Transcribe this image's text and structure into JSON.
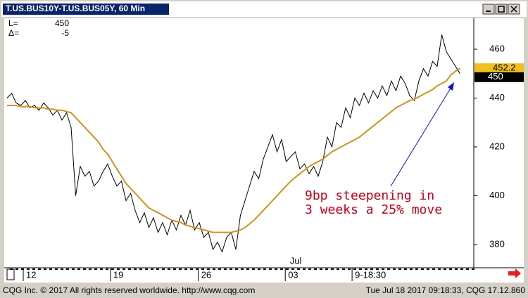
{
  "window_title": "T.US.BUS10Y-T.US.BUS05Y, 60 Min",
  "readout": {
    "last_label": "L=",
    "delta_label": "Δ=",
    "delta": -5
  },
  "footer": {
    "left": "CQG Inc. © 2017 All rights reserved worldwide. http://www.cqg.com",
    "right": "Tue Jul 18 2017 09:18:33, CQG 17.12.860"
  },
  "chart_data": {
    "type": "line",
    "annotations": [
      "9bp steepening in",
      "3 weeks a 25% move"
    ],
    "xlim": [
      0,
      102
    ],
    "xticks": [
      {
        "value": 3.54,
        "label": "12"
      },
      {
        "value": 22.6,
        "label": "19"
      },
      {
        "value": 41.8,
        "label": "26"
      },
      {
        "value": 60.8,
        "label": "03"
      },
      {
        "value": 75.4,
        "label": "9-18:30"
      }
    ],
    "x_month_labels": [
      {
        "value": 63.1,
        "label": "Jul"
      }
    ],
    "ylim": [
      370.5,
      472.1
    ],
    "yticks": [
      380,
      400,
      420,
      440,
      460
    ],
    "series": [
      {
        "color": "#000000",
        "values": [
          440,
          442,
          438,
          437,
          439,
          436,
          437,
          435,
          438,
          436,
          433,
          435,
          431,
          434,
          428,
          400,
          412,
          408,
          410,
          404,
          406,
          410,
          413,
          408,
          404,
          406,
          398,
          401,
          394,
          389,
          393,
          387,
          391,
          385,
          389,
          384,
          390,
          386,
          392,
          388,
          394,
          386,
          389,
          383,
          385,
          378,
          381,
          377,
          383,
          385,
          378,
          392,
          398,
          404,
          410,
          407,
          415,
          420,
          425,
          418,
          423,
          414,
          416,
          418,
          411,
          413,
          409,
          412,
          408,
          414,
          424,
          420,
          430,
          428,
          436,
          432,
          440,
          437,
          442,
          438,
          443,
          440,
          445,
          441,
          447,
          443,
          449,
          446,
          441,
          439,
          447,
          452,
          449,
          455,
          453,
          466,
          459,
          456,
          453,
          450
        ]
      },
      {
        "color": "#c8961e",
        "values": [
          437,
          437,
          437,
          436.5,
          436.5,
          436.5,
          436,
          436,
          436,
          435.5,
          435.5,
          435,
          435,
          434.5,
          434,
          432,
          430,
          428,
          426,
          424,
          422,
          419,
          417,
          414,
          411,
          408,
          405,
          403,
          401,
          399,
          397,
          395,
          394,
          393,
          392,
          391,
          390,
          389.5,
          389,
          388,
          387.5,
          387,
          386.5,
          386,
          385.5,
          385,
          385,
          385,
          385,
          385,
          385.5,
          386,
          387,
          388.5,
          390,
          392,
          394,
          396,
          398,
          400,
          402,
          404,
          406,
          407.5,
          409,
          410.5,
          412,
          413,
          414,
          415,
          416.5,
          418,
          419,
          420,
          421,
          422,
          423,
          424,
          425.5,
          427,
          428.5,
          430,
          431.5,
          433,
          434.5,
          436,
          437,
          438,
          439,
          439.5,
          440.5,
          441.5,
          442.5,
          443.5,
          445,
          446,
          447,
          449.5,
          451,
          452.2
        ]
      }
    ]
  }
}
